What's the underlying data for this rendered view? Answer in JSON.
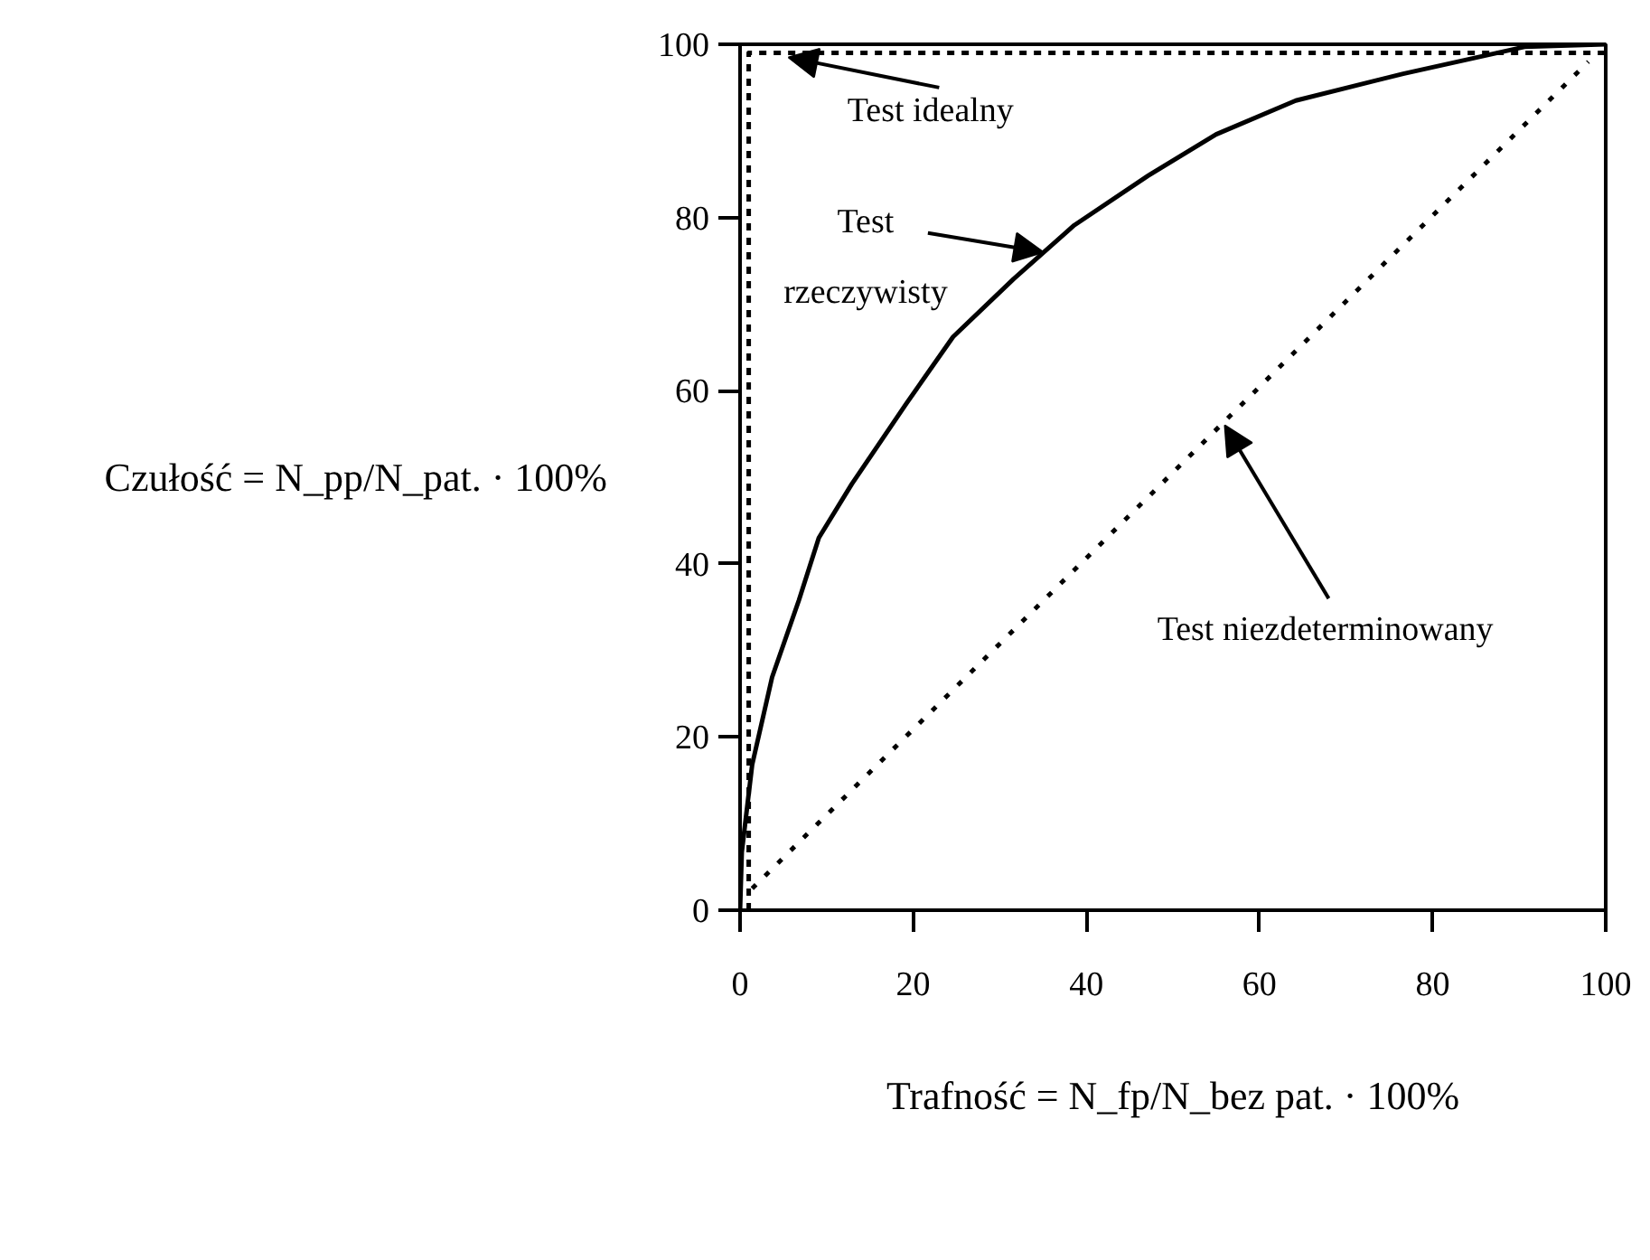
{
  "chart_data": {
    "type": "line",
    "xlabel": "Trafność = N_fp/N_bez pat. · 100%",
    "ylabel": "Czułość = N_pp/N_pat. · 100%",
    "xlim": [
      0,
      100
    ],
    "ylim": [
      0,
      100
    ],
    "xticks": [
      0,
      20,
      40,
      60,
      80,
      100
    ],
    "yticks": [
      0,
      20,
      40,
      60,
      80,
      100
    ],
    "grid": false,
    "marker": "none",
    "series": [
      {
        "color": "#000000",
        "line_style": "dashed",
        "x": [
          1,
          1,
          100
        ],
        "values": [
          0,
          99,
          99
        ]
      },
      {
        "color": "#000000",
        "line_style": "solid",
        "x": [
          0,
          0.2,
          1.4,
          3.7,
          6.8,
          9.1,
          12.9,
          19.2,
          24.6,
          31.6,
          38.6,
          47.1,
          55,
          64.2,
          76.6,
          90.6,
          100
        ],
        "values": [
          0,
          6.7,
          16.8,
          26.9,
          35.8,
          43,
          49.2,
          58.5,
          66.2,
          72.9,
          79.1,
          84.8,
          89.6,
          93.5,
          96.6,
          99.7,
          100
        ]
      },
      {
        "color": "#000000",
        "line_style": "dotted",
        "x": [
          1.4,
          98
        ],
        "values": [
          2.5,
          98
        ]
      }
    ],
    "annotations": [
      {
        "text": "Test idealny",
        "x": 5.6,
        "y": 98.5
      },
      {
        "text": "Test\nrzeczywisty",
        "x": 35,
        "y": 76
      },
      {
        "text": "Test niezdeterminowany",
        "x": 56,
        "y": 56
      }
    ]
  }
}
